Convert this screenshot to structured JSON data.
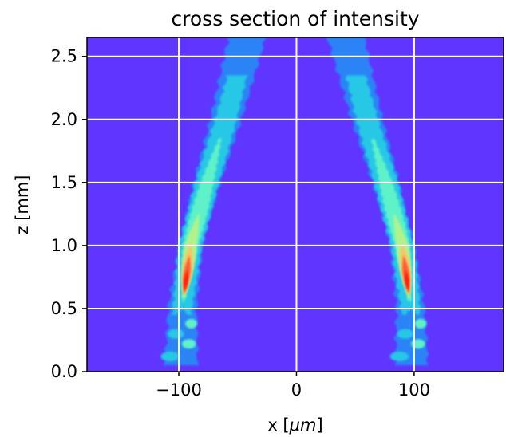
{
  "chart_data": {
    "type": "heatmap",
    "title": "cross section of intensity",
    "xlabel_prefix": "x [",
    "xlabel_unit": "μm",
    "xlabel_suffix": "]",
    "ylabel": "z [mm]",
    "xlim": [
      -178,
      176
    ],
    "ylim": [
      0,
      2.65
    ],
    "x_ticks": [
      -100,
      0,
      100
    ],
    "x_tick_labels": [
      "−100",
      "0",
      "100"
    ],
    "y_ticks": [
      0.0,
      0.5,
      1.0,
      1.5,
      2.0,
      2.5
    ],
    "y_tick_labels": [
      "0.0",
      "0.5",
      "1.0",
      "1.5",
      "2.0",
      "2.5"
    ],
    "grid": true,
    "colormap": "rainbow",
    "background_color": "#5f35ff",
    "grid_color": "#ffffff",
    "level_colors": [
      "#5f35ff",
      "#2a84f6",
      "#27c8e6",
      "#5ef2c8",
      "#b2f28a",
      "#f6c766",
      "#ff5a34",
      "#ff1a10"
    ],
    "beams": [
      {
        "side": "left",
        "center_x": [
          [
            0,
            -98
          ],
          [
            0.5,
            -97
          ],
          [
            1.0,
            -90
          ],
          [
            1.5,
            -76
          ],
          [
            2.0,
            -60
          ],
          [
            2.65,
            -42
          ]
        ],
        "peak_z": 0.75,
        "peak_x": -97
      },
      {
        "side": "right",
        "center_x": [
          [
            0,
            98
          ],
          [
            0.5,
            97
          ],
          [
            1.0,
            90
          ],
          [
            1.5,
            76
          ],
          [
            2.0,
            60
          ],
          [
            2.65,
            42
          ]
        ],
        "peak_z": 0.75,
        "peak_x": 97
      }
    ]
  }
}
